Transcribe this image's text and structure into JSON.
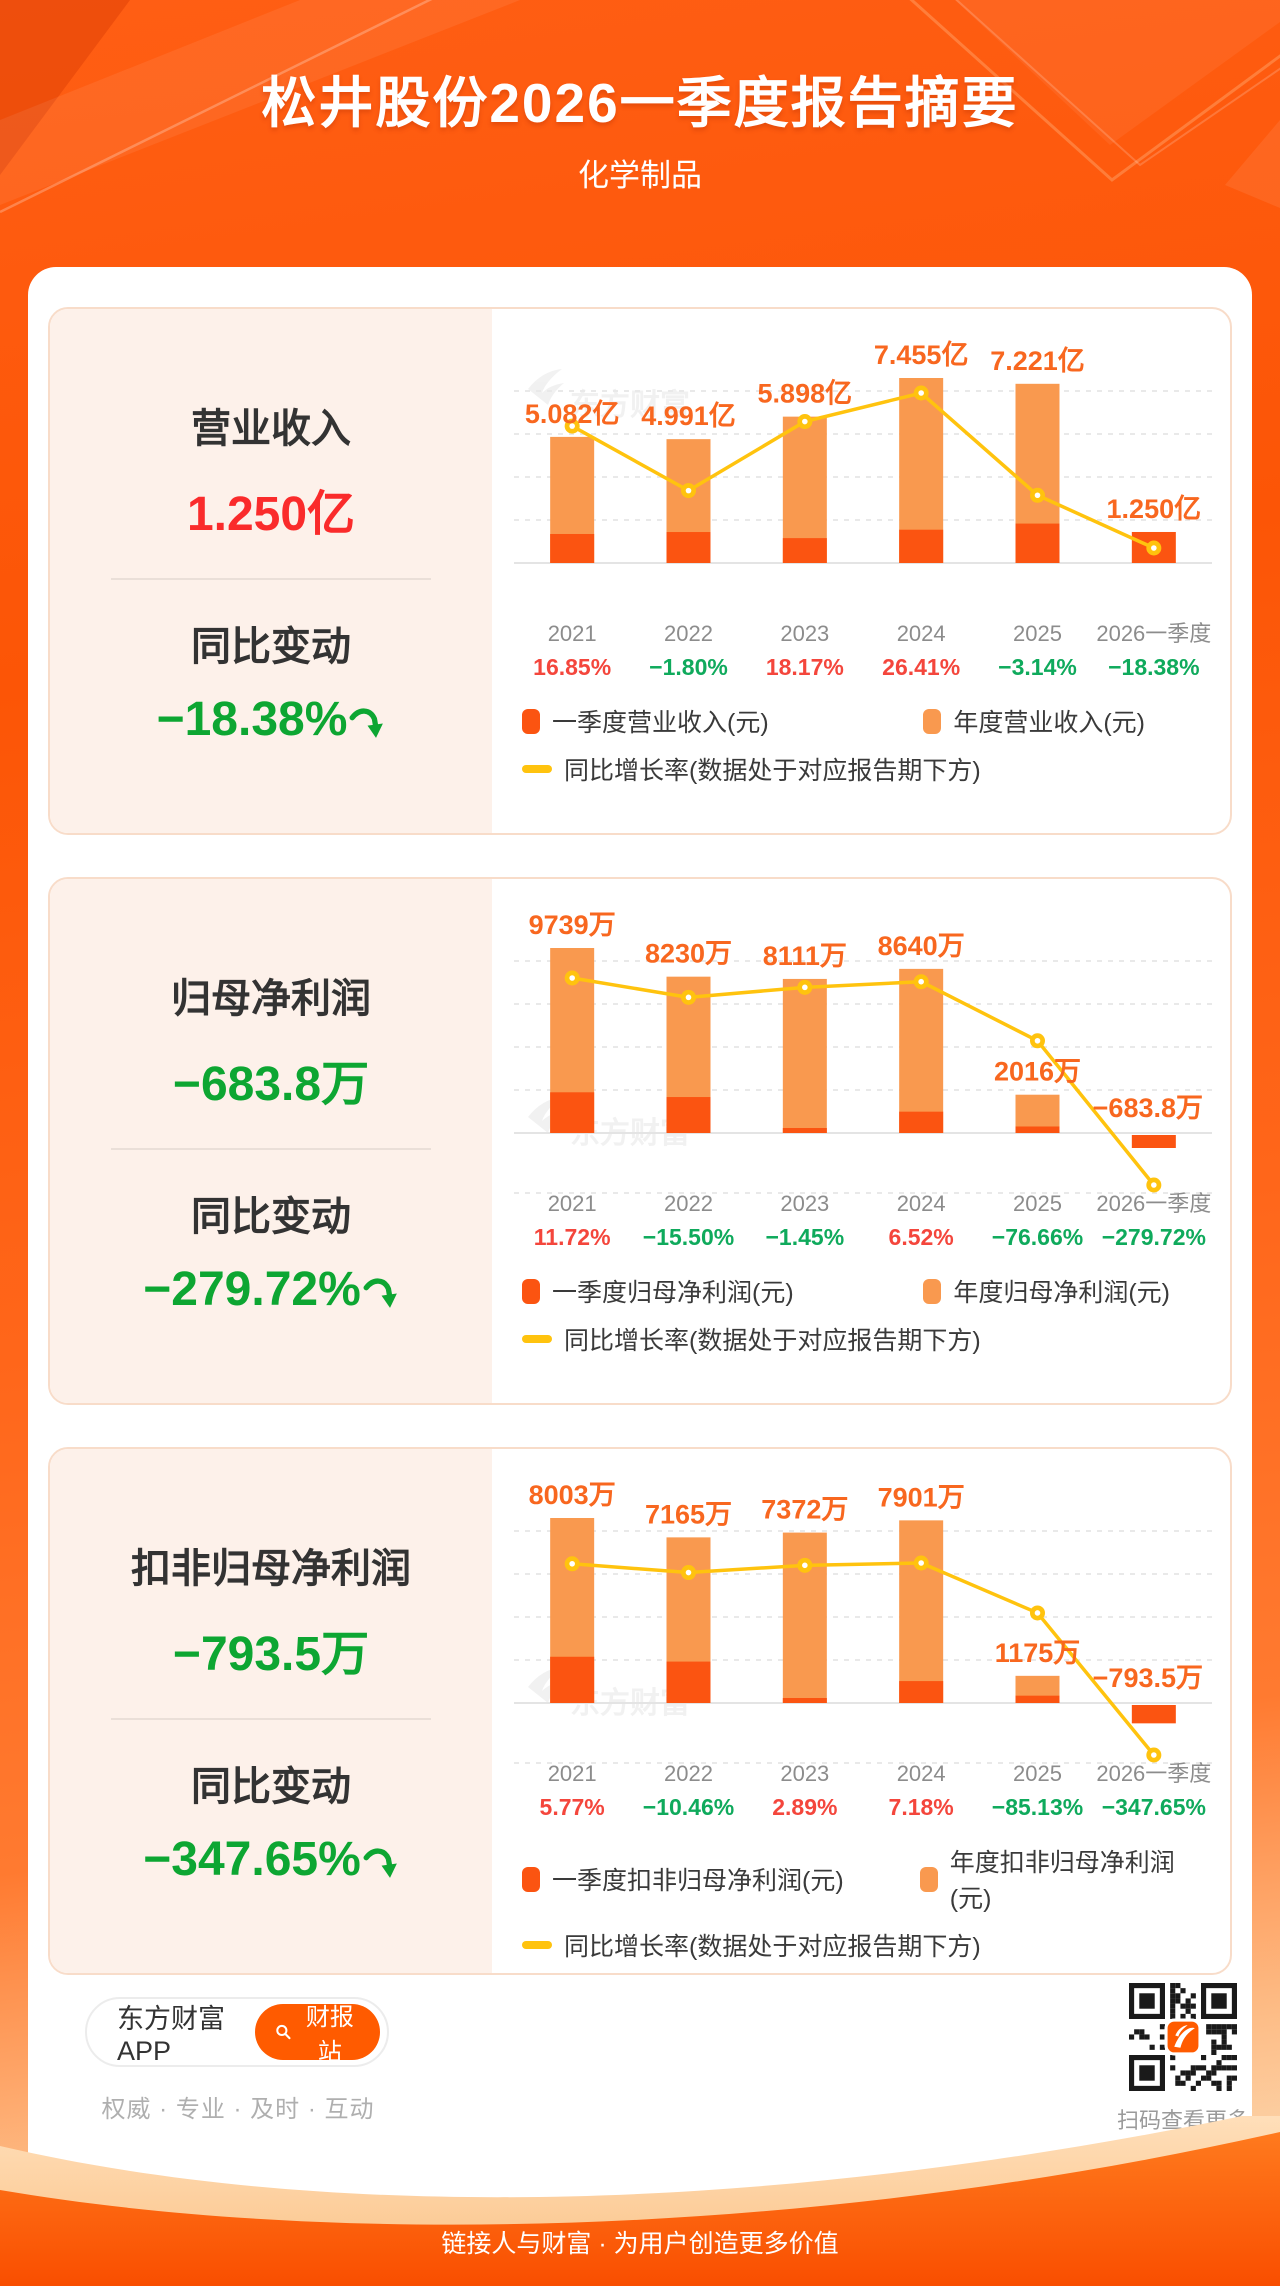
{
  "header": {
    "title": "松井股份2026一季度报告摘要",
    "subtitle": "化学制品"
  },
  "cards": [
    {
      "metric_label": "营业收入",
      "metric_value": "1.250亿",
      "change_label": "同比变动",
      "change_value": "−18.38%",
      "legend_q1": "一季度营业收入(元)",
      "legend_annual": "年度营业收入(元)",
      "legend_growth": "同比增长率(数据处于对应报告期下方)"
    },
    {
      "metric_label": "归母净利润",
      "metric_value": "−683.8万",
      "change_label": "同比变动",
      "change_value": "−279.72%",
      "legend_q1": "一季度归母净利润(元)",
      "legend_annual": "年度归母净利润(元)",
      "legend_growth": "同比增长率(数据处于对应报告期下方)"
    },
    {
      "metric_label": "扣非归母净利润",
      "metric_value": "−793.5万",
      "change_label": "同比变动",
      "change_value": "−347.65%",
      "legend_q1": "一季度扣非归母净利润(元)",
      "legend_annual": "年度扣非归母净利润(元)",
      "legend_growth": "同比增长率(数据处于对应报告期下方)"
    }
  ],
  "chart_data": [
    {
      "type": "bar+line",
      "title": "营业收入",
      "unit": "亿",
      "categories": [
        "2021",
        "2022",
        "2023",
        "2024",
        "2025",
        "2026一季度"
      ],
      "annual_values": [
        5.082,
        4.991,
        5.898,
        7.455,
        7.221
      ],
      "q1_value": 1.25,
      "bar_labels": [
        "5.082亿",
        "4.991亿",
        "5.898亿",
        "7.455亿",
        "7.221亿",
        "1.250亿"
      ],
      "q1_segment_fraction": [
        0.23,
        0.25,
        0.17,
        0.18,
        0.22
      ],
      "growth_pct": [
        16.85,
        -1.8,
        18.17,
        26.41,
        -3.14,
        -18.38
      ],
      "growth_labels": [
        "16.85%",
        "−1.80%",
        "18.17%",
        "26.41%",
        "−3.14%",
        "−18.38%"
      ],
      "series_names": [
        "一季度营业收入(元)",
        "年度营业收入(元)",
        "同比增长率(数据处于对应报告期下方)"
      ],
      "watermark": "东方财富",
      "grid": "dashed-horizontal",
      "legend_position": "bottom"
    },
    {
      "type": "bar+line",
      "title": "归母净利润",
      "unit": "万",
      "categories": [
        "2021",
        "2022",
        "2023",
        "2024",
        "2025",
        "2026一季度"
      ],
      "annual_values": [
        9739,
        8230,
        8111,
        8640,
        2016
      ],
      "q1_value": -683.8,
      "bar_labels": [
        "9739万",
        "8230万",
        "8111万",
        "8640万",
        "2016万",
        "−683.8万"
      ],
      "q1_segment_fraction": [
        0.22,
        0.23,
        0.03,
        0.13,
        0.17
      ],
      "growth_pct": [
        11.72,
        -15.5,
        -1.45,
        6.52,
        -76.66,
        -279.72
      ],
      "growth_labels": [
        "11.72%",
        "−15.50%",
        "−1.45%",
        "6.52%",
        "−76.66%",
        "−279.72%"
      ],
      "series_names": [
        "一季度归母净利润(元)",
        "年度归母净利润(元)",
        "同比增长率(数据处于对应报告期下方)"
      ],
      "watermark": "东方财富",
      "grid": "dashed-horizontal",
      "legend_position": "bottom"
    },
    {
      "type": "bar+line",
      "title": "扣非归母净利润",
      "unit": "万",
      "categories": [
        "2021",
        "2022",
        "2023",
        "2024",
        "2025",
        "2026一季度"
      ],
      "annual_values": [
        8003,
        7165,
        7372,
        7901,
        1175
      ],
      "q1_value": -793.5,
      "bar_labels": [
        "8003万",
        "7165万",
        "7372万",
        "7901万",
        "1175万",
        "−793.5万"
      ],
      "q1_segment_fraction": [
        0.25,
        0.25,
        0.02,
        0.12,
        0.27
      ],
      "growth_pct": [
        5.77,
        -10.46,
        2.89,
        7.18,
        -85.13,
        -347.65
      ],
      "growth_labels": [
        "5.77%",
        "−10.46%",
        "2.89%",
        "7.18%",
        "−85.13%",
        "−347.65%"
      ],
      "series_names": [
        "一季度扣非归母净利润(元)",
        "年度扣非归母净利润(元)",
        "同比增长率(数据处于对应报告期下方)"
      ],
      "watermark": "东方财富",
      "grid": "dashed-horizontal",
      "legend_position": "bottom"
    }
  ],
  "colors": {
    "annual_bar": "#F9994F",
    "q1_bar": "#FB5411",
    "growth_line": "#FFC30E",
    "bar_label": "#F8671F",
    "growth_positive": "#F4463C",
    "growth_negative": "#0FAA5C",
    "year_label": "#8C8C8C",
    "metric_up_red": "#FA2B2B",
    "metric_down_green": "#0DA632",
    "accent_orange": "#FF5B00"
  },
  "footer": {
    "app_label": "东方财富APP",
    "report_button": "财报站",
    "tagline": "权威 · 专业 · 及时 · 互动",
    "qr_caption": "扫码查看更多"
  },
  "bottom_banner": {
    "tagline": "链接人与财富 · 为用户创造更多价值"
  }
}
